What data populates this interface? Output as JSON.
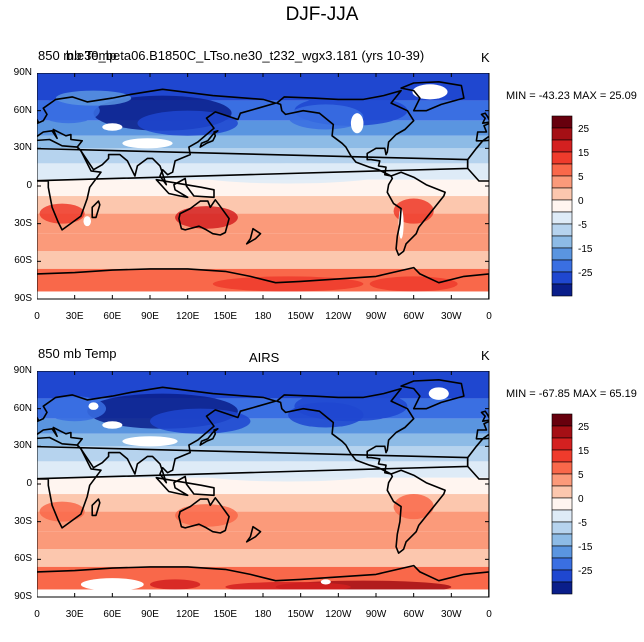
{
  "page_title": "DJF-JJA",
  "panels": [
    {
      "left_title": "850 mb Temp",
      "left_title_overlay": "b.e30_beta06.B1850C_LTso.ne30_t232_wgx3.181 (yrs 10-39)",
      "center_title": "",
      "units": "K",
      "min_max": "MIN = -43.23  MAX =  25.09",
      "min": -43.23,
      "max": 25.09
    },
    {
      "left_title": "850 mb Temp",
      "left_title_overlay": "",
      "center_title": "AIRS",
      "units": "K",
      "min_max": "MIN = -67.85  MAX =  65.19",
      "min": -67.85,
      "max": 65.19
    }
  ],
  "lat_ticks": [
    "90N",
    "60N",
    "30N",
    "0",
    "30S",
    "60S",
    "90S"
  ],
  "lon_ticks": [
    "0",
    "30E",
    "60E",
    "90E",
    "120E",
    "150E",
    "180",
    "150W",
    "120W",
    "90W",
    "60W",
    "30W",
    "0"
  ],
  "colorbar": {
    "labels": [
      "25",
      "15",
      "5",
      "0",
      "-5",
      "-15",
      "-25"
    ],
    "colors": [
      "#67000d",
      "#a50f15",
      "#d42020",
      "#ef3b2c",
      "#f9684a",
      "#fb9a7a",
      "#fcc7ae",
      "#fff5f0",
      "#deebf7",
      "#b6d3ee",
      "#8dbbe6",
      "#5a95e0",
      "#3a6fe2",
      "#1f47d0",
      "#0a1e8a"
    ]
  },
  "palette": {
    "missing": "#ffffff",
    "coast": "#000000",
    "cold_deep": "#1f47d0",
    "warm_deep": "#d42020"
  }
}
